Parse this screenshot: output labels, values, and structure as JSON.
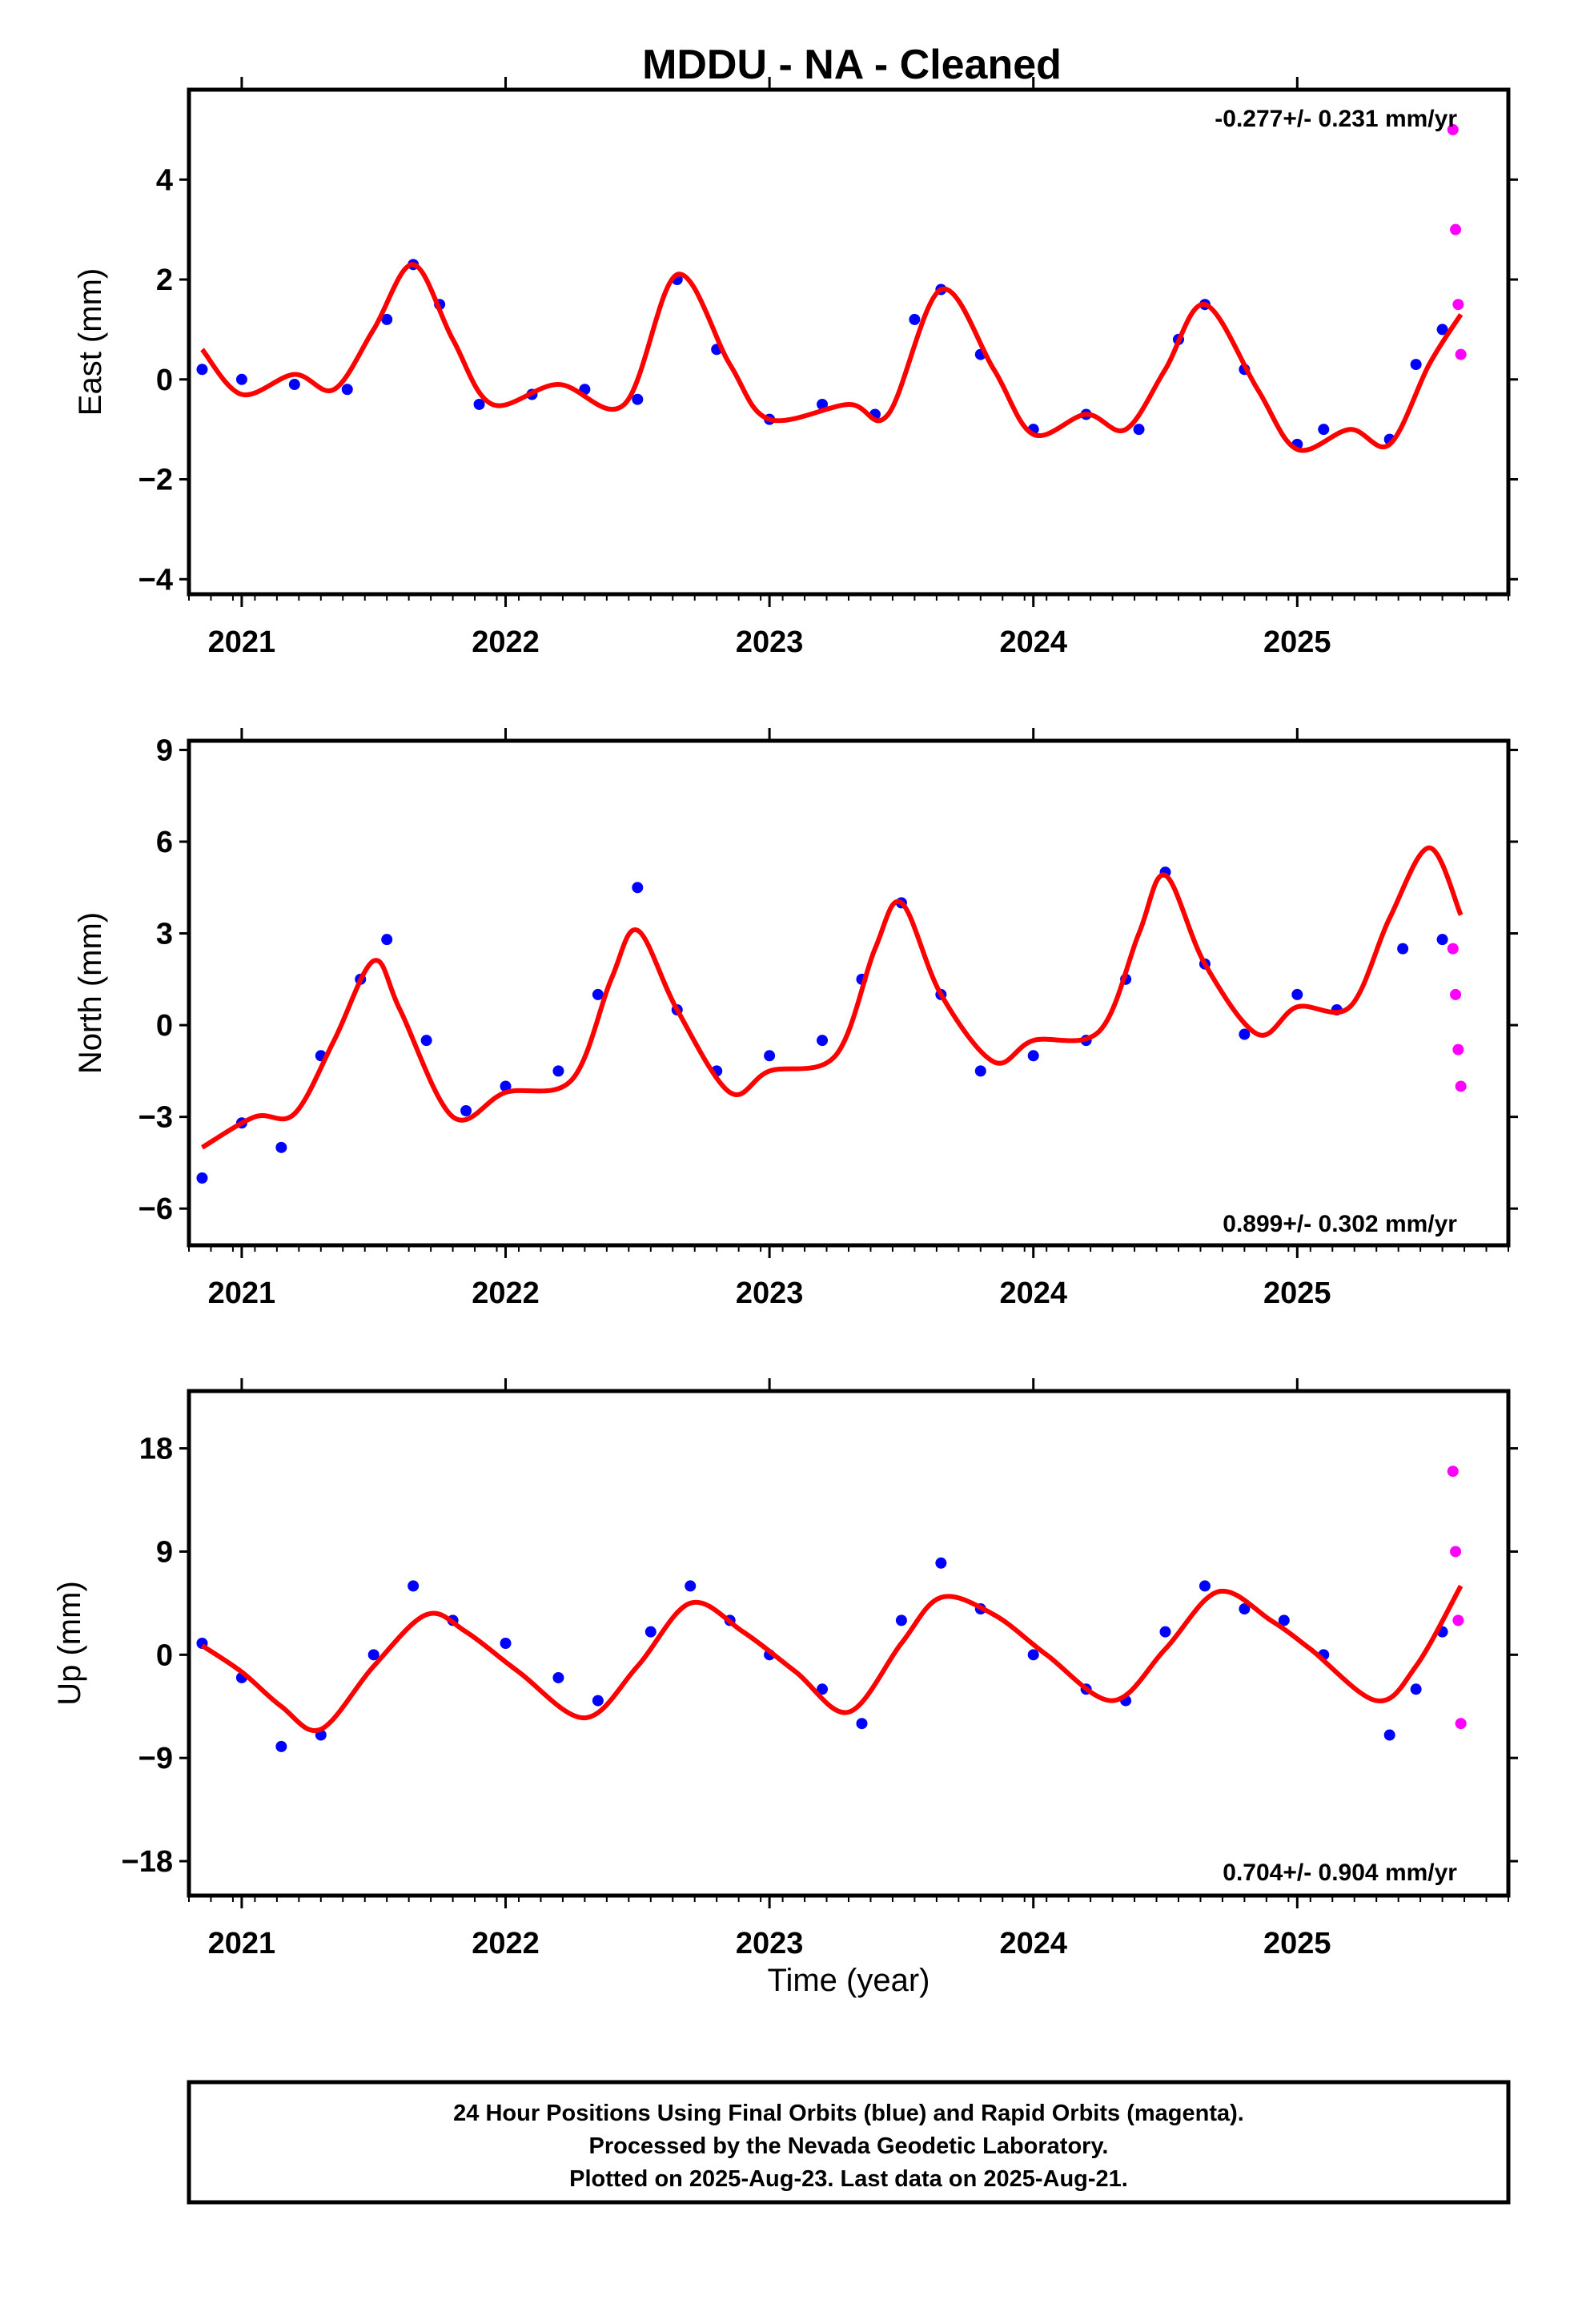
{
  "title": "MDDU  - NA - Cleaned",
  "xlabel": "Time (year)",
  "footer": {
    "line1": "24 Hour Positions Using Final Orbits (blue) and Rapid Orbits (magenta).",
    "line2": "Processed by the Nevada Geodetic Laboratory.",
    "line3": "Plotted on 2025-Aug-23. Last data on 2025-Aug-21."
  },
  "colors": {
    "final": "#0000ff",
    "rapid": "#ff00ff",
    "model": "#ff0000"
  },
  "chart_data": [
    {
      "type": "scatter",
      "ylabel": "East (mm)",
      "rate": "-0.277+/- 0.231 mm/yr",
      "xlim": [
        2020.8,
        2025.8
      ],
      "ylim": [
        -4.3,
        5.8
      ],
      "yticks": [
        -4,
        -2,
        0,
        2,
        4
      ],
      "xticks": [
        2021,
        2022,
        2023,
        2024,
        2025
      ],
      "series": [
        {
          "kind": "final",
          "x": [
            2020.85,
            2021.0,
            2021.2,
            2021.4,
            2021.55,
            2021.65,
            2021.75,
            2021.9,
            2022.1,
            2022.3,
            2022.5,
            2022.65,
            2022.8,
            2023.0,
            2023.2,
            2023.4,
            2023.55,
            2023.65,
            2023.8,
            2024.0,
            2024.2,
            2024.4,
            2024.55,
            2024.65,
            2024.8,
            2025.0,
            2025.1,
            2025.35,
            2025.45,
            2025.55
          ],
          "y": [
            0.2,
            0.0,
            -0.1,
            -0.2,
            1.2,
            2.3,
            1.5,
            -0.5,
            -0.3,
            -0.2,
            -0.4,
            2.0,
            0.6,
            -0.8,
            -0.5,
            -0.7,
            1.2,
            1.8,
            0.5,
            -1.0,
            -0.7,
            -1.0,
            0.8,
            1.5,
            0.2,
            -1.3,
            -1.0,
            -1.2,
            0.3,
            1.0
          ]
        },
        {
          "kind": "rapid",
          "x": [
            2025.59,
            2025.6,
            2025.61,
            2025.62
          ],
          "y": [
            5.0,
            3.0,
            1.5,
            0.5
          ]
        }
      ],
      "model": {
        "x": [
          2020.85,
          2021.0,
          2021.2,
          2021.35,
          2021.5,
          2021.65,
          2021.8,
          2021.95,
          2022.2,
          2022.45,
          2022.65,
          2022.85,
          2023.0,
          2023.3,
          2023.45,
          2023.65,
          2023.85,
          2024.0,
          2024.2,
          2024.35,
          2024.5,
          2024.65,
          2024.85,
          2025.0,
          2025.2,
          2025.35,
          2025.5,
          2025.62
        ],
        "y": [
          0.6,
          -0.3,
          0.1,
          -0.2,
          1.0,
          2.3,
          0.8,
          -0.5,
          -0.1,
          -0.5,
          2.1,
          0.3,
          -0.8,
          -0.5,
          -0.7,
          1.8,
          0.2,
          -1.1,
          -0.7,
          -1.0,
          0.2,
          1.5,
          -0.2,
          -1.4,
          -1.0,
          -1.3,
          0.3,
          1.3
        ]
      }
    },
    {
      "type": "scatter",
      "ylabel": "North (mm)",
      "rate": "0.899+/- 0.302 mm/yr",
      "xlim": [
        2020.8,
        2025.8
      ],
      "ylim": [
        -7.2,
        9.3
      ],
      "yticks": [
        -6,
        -3,
        0,
        3,
        6,
        9
      ],
      "xticks": [
        2021,
        2022,
        2023,
        2024,
        2025
      ],
      "series": [
        {
          "kind": "final",
          "x": [
            2020.85,
            2021.0,
            2021.15,
            2021.3,
            2021.45,
            2021.55,
            2021.7,
            2021.85,
            2022.0,
            2022.2,
            2022.35,
            2022.5,
            2022.65,
            2022.8,
            2023.0,
            2023.2,
            2023.35,
            2023.5,
            2023.65,
            2023.8,
            2024.0,
            2024.2,
            2024.35,
            2024.5,
            2024.65,
            2024.8,
            2025.0,
            2025.15,
            2025.4,
            2025.55
          ],
          "y": [
            -5.0,
            -3.2,
            -4.0,
            -1.0,
            1.5,
            2.8,
            -0.5,
            -2.8,
            -2.0,
            -1.5,
            1.0,
            4.5,
            0.5,
            -1.5,
            -1.0,
            -0.5,
            1.5,
            4.0,
            1.0,
            -1.5,
            -1.0,
            -0.5,
            1.5,
            5.0,
            2.0,
            -0.3,
            1.0,
            0.5,
            2.5,
            2.8
          ]
        },
        {
          "kind": "rapid",
          "x": [
            2025.59,
            2025.6,
            2025.61,
            2025.62
          ],
          "y": [
            2.5,
            1.0,
            -0.8,
            -2.0
          ]
        }
      ],
      "model": {
        "x": [
          2020.85,
          2021.05,
          2021.2,
          2021.35,
          2021.5,
          2021.6,
          2021.8,
          2022.0,
          2022.25,
          2022.4,
          2022.5,
          2022.65,
          2022.85,
          2023.0,
          2023.25,
          2023.4,
          2023.5,
          2023.65,
          2023.85,
          2024.0,
          2024.25,
          2024.4,
          2024.5,
          2024.65,
          2024.85,
          2025.0,
          2025.2,
          2025.35,
          2025.5,
          2025.62
        ],
        "y": [
          -4.0,
          -3.0,
          -2.9,
          -0.5,
          2.1,
          0.5,
          -3.0,
          -2.2,
          -1.8,
          1.5,
          3.1,
          0.5,
          -2.2,
          -1.5,
          -1.0,
          2.5,
          4.0,
          1.0,
          -1.2,
          -0.5,
          -0.2,
          3.0,
          4.9,
          2.0,
          -0.3,
          0.6,
          0.6,
          3.5,
          5.8,
          3.6
        ]
      }
    },
    {
      "type": "scatter",
      "ylabel": "Up (mm)",
      "rate": "0.704+/- 0.904 mm/yr",
      "xlim": [
        2020.8,
        2025.8
      ],
      "ylim": [
        -21,
        23
      ],
      "yticks": [
        -18,
        -9,
        0,
        9,
        18
      ],
      "xticks": [
        2021,
        2022,
        2023,
        2024,
        2025
      ],
      "series": [
        {
          "kind": "final",
          "x": [
            2020.85,
            2021.0,
            2021.15,
            2021.3,
            2021.5,
            2021.65,
            2021.8,
            2022.0,
            2022.2,
            2022.35,
            2022.55,
            2022.7,
            2022.85,
            2023.0,
            2023.2,
            2023.35,
            2023.5,
            2023.65,
            2023.8,
            2024.0,
            2024.2,
            2024.35,
            2024.5,
            2024.65,
            2024.8,
            2024.95,
            2025.1,
            2025.35,
            2025.45,
            2025.55
          ],
          "y": [
            1.0,
            -2.0,
            -8.0,
            -7.0,
            0.0,
            6.0,
            3.0,
            1.0,
            -2.0,
            -4.0,
            2.0,
            6.0,
            3.0,
            0.0,
            -3.0,
            -6.0,
            3.0,
            8.0,
            4.0,
            0.0,
            -3.0,
            -4.0,
            2.0,
            6.0,
            4.0,
            3.0,
            0.0,
            -7.0,
            -3.0,
            2.0
          ]
        },
        {
          "kind": "rapid",
          "x": [
            2025.59,
            2025.6,
            2025.61,
            2025.62
          ],
          "y": [
            16.0,
            9.0,
            3.0,
            -6.0
          ]
        }
      ],
      "model": {
        "x": [
          2020.85,
          2021.0,
          2021.15,
          2021.3,
          2021.5,
          2021.7,
          2021.85,
          2022.05,
          2022.3,
          2022.5,
          2022.7,
          2022.9,
          2023.1,
          2023.3,
          2023.5,
          2023.65,
          2023.85,
          2024.05,
          2024.3,
          2024.5,
          2024.7,
          2024.9,
          2025.05,
          2025.3,
          2025.45,
          2025.62
        ],
        "y": [
          0.8,
          -1.5,
          -4.5,
          -6.5,
          -1.0,
          3.5,
          2.0,
          -1.5,
          -5.5,
          -1.0,
          4.5,
          2.0,
          -1.5,
          -5.0,
          1.0,
          5.0,
          3.5,
          0.0,
          -4.0,
          0.5,
          5.5,
          3.0,
          0.5,
          -4.0,
          -1.0,
          6.0
        ]
      }
    }
  ]
}
